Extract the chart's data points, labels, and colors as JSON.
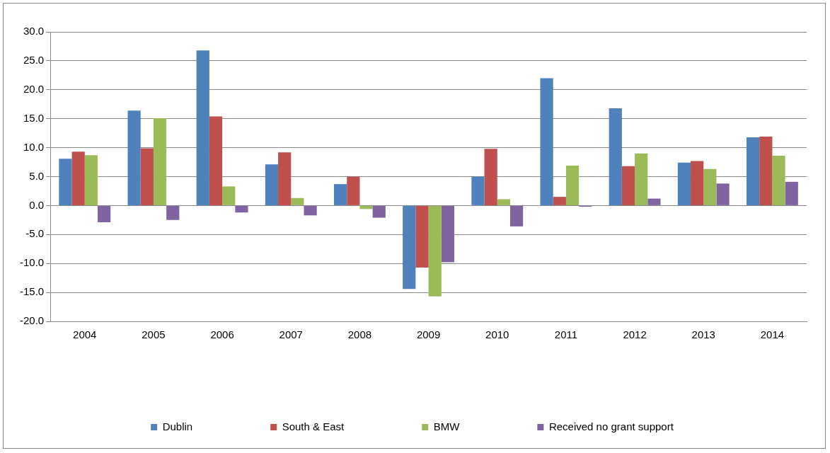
{
  "chart_data": {
    "type": "bar",
    "categories": [
      "2004",
      "2005",
      "2006",
      "2007",
      "2008",
      "2009",
      "2010",
      "2011",
      "2012",
      "2013",
      "2014"
    ],
    "series": [
      {
        "name": "Dublin",
        "color": "#4f81bd",
        "values": [
          8.1,
          16.4,
          26.8,
          7.1,
          3.7,
          -14.4,
          5.0,
          22.0,
          16.8,
          7.4,
          11.8
        ]
      },
      {
        "name": "South & East",
        "color": "#c0504d",
        "values": [
          9.3,
          9.9,
          15.4,
          9.2,
          5.0,
          -10.7,
          9.8,
          1.5,
          6.8,
          7.7,
          11.9
        ]
      },
      {
        "name": "BMW",
        "color": "#9bbb59",
        "values": [
          8.7,
          15.1,
          3.3,
          1.3,
          -0.6,
          -15.7,
          1.1,
          6.9,
          9.0,
          6.3,
          8.6
        ]
      },
      {
        "name": "Received no grant support",
        "color": "#8064a2",
        "values": [
          -2.9,
          -2.5,
          -1.2,
          -1.7,
          -2.1,
          -9.8,
          -3.6,
          -0.2,
          1.2,
          3.8,
          4.1
        ]
      }
    ],
    "ylim": [
      -20,
      30
    ],
    "yticks": [
      {
        "value": -20,
        "label": "-20.0"
      },
      {
        "value": -15,
        "label": "-15.0"
      },
      {
        "value": -10,
        "label": "-10.0"
      },
      {
        "value": -5,
        "label": "-5.0"
      },
      {
        "value": 0,
        "label": "0.0"
      },
      {
        "value": 5,
        "label": "5.0"
      },
      {
        "value": 10,
        "label": "10.0"
      },
      {
        "value": 15,
        "label": "15.0"
      },
      {
        "value": 20,
        "label": "20.0"
      },
      {
        "value": 25,
        "label": "25.0"
      },
      {
        "value": 30,
        "label": "30.0"
      }
    ],
    "grid": "y",
    "legend": "bottom"
  }
}
